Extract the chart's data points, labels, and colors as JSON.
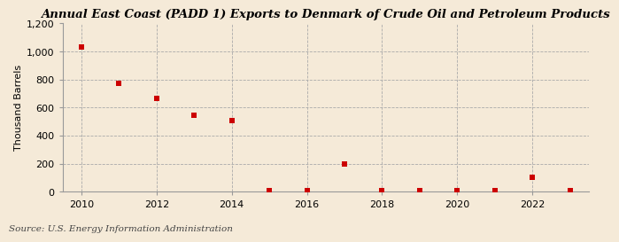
{
  "title": "Annual East Coast (PADD 1) Exports to Denmark of Crude Oil and Petroleum Products",
  "ylabel": "Thousand Barrels",
  "source": "Source: U.S. Energy Information Administration",
  "background_color": "#f5ead8",
  "plot_bg_color": "#f5ead8",
  "years": [
    2010,
    2011,
    2012,
    2013,
    2014,
    2015,
    2016,
    2017,
    2018,
    2019,
    2020,
    2021,
    2022,
    2023
  ],
  "values": [
    1030,
    775,
    665,
    545,
    510,
    5,
    5,
    200,
    5,
    10,
    5,
    10,
    105,
    5
  ],
  "marker_color": "#cc0000",
  "marker": "s",
  "marker_size": 4,
  "ylim": [
    0,
    1200
  ],
  "yticks": [
    0,
    200,
    400,
    600,
    800,
    1000,
    1200
  ],
  "ytick_labels": [
    "0",
    "200",
    "400",
    "600",
    "800",
    "1,000",
    "1,200"
  ],
  "xticks": [
    2010,
    2012,
    2014,
    2016,
    2018,
    2020,
    2022
  ],
  "xlim": [
    2009.5,
    2023.5
  ],
  "grid_color": "#aaaaaa",
  "title_fontsize": 9.5,
  "axis_fontsize": 8,
  "source_fontsize": 7.5
}
